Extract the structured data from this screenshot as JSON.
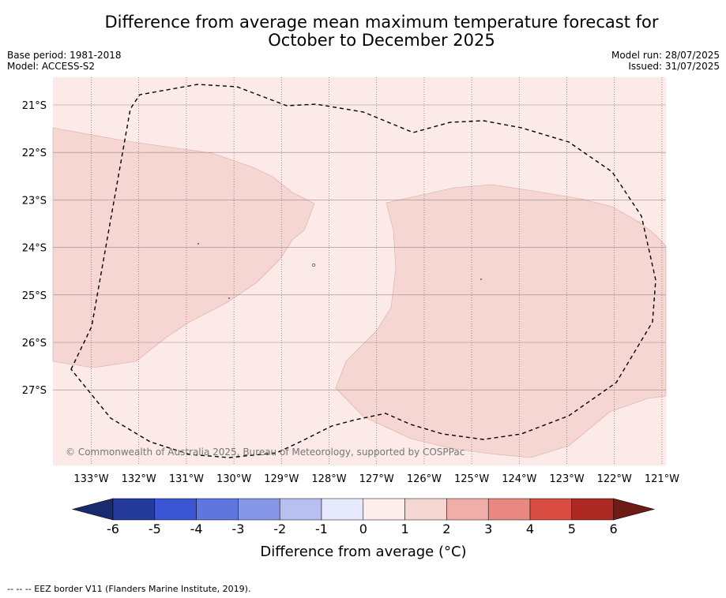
{
  "header": {
    "title_line1": "Difference from average mean maximum temperature forecast for",
    "title_line2": "October to December 2025",
    "base_period": "Base period: 1981-2018",
    "model": "Model: ACCESS-S2",
    "model_run": "Model run: 28/07/2025",
    "issued": "Issued: 31/07/2025"
  },
  "map": {
    "lat_labels": [
      "21°S",
      "22°S",
      "23°S",
      "24°S",
      "25°S",
      "26°S",
      "27°S"
    ],
    "lon_labels": [
      "133°W",
      "132°W",
      "131°W",
      "130°W",
      "129°W",
      "128°W",
      "127°W",
      "126°W",
      "125°W",
      "124°W",
      "123°W",
      "122°W",
      "121°W"
    ],
    "copyright": "© Commonwealth of Australia 2025, Bureau of Meteorology, supported by COSPPac",
    "background_category": "0 to 1",
    "region_category": "1 to 2",
    "colors": {
      "cat_0_1": "#fbeae8",
      "cat_1_2": "#f5d6d2",
      "eez_border": "#000000",
      "grid": "#888888"
    }
  },
  "colorbar": {
    "ticks": [
      "-6",
      "-5",
      "-4",
      "-3",
      "-2",
      "-1",
      "0",
      "1",
      "2",
      "3",
      "4",
      "5",
      "6"
    ],
    "colors": [
      "#243b9c",
      "#3c55d4",
      "#5f76df",
      "#8797e8",
      "#b7c0f1",
      "#e6e9fb",
      "#fdeeeb",
      "#f5d6d2",
      "#efaea7",
      "#e88880",
      "#d94c42",
      "#ad2a24"
    ],
    "low_color": "#1a2a6e",
    "high_color": "#6e1a15",
    "label": "Difference from average (°C)"
  },
  "footnote": "--  --  -- EEZ border V11 (Flanders Marine Institute, 2019)."
}
